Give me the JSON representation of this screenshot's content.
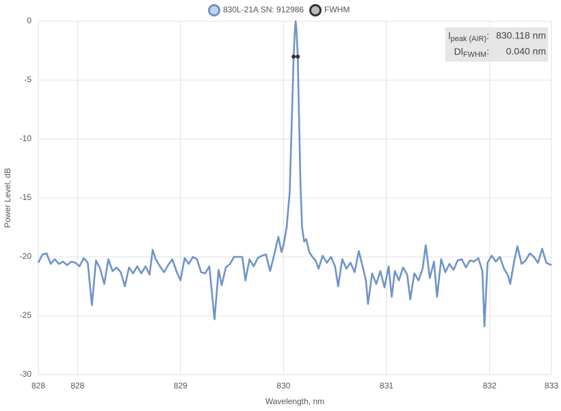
{
  "chart_data": {
    "type": "line",
    "x_label": "Wavelength, nm",
    "y_label": "Power Level, dB",
    "xlim": [
      827.62,
      832.6
    ],
    "xticks": [
      {
        "value": 827.62,
        "label": "828"
      },
      {
        "value": 828,
        "label": "828"
      },
      {
        "value": 829,
        "label": "829"
      },
      {
        "value": 830,
        "label": "830"
      },
      {
        "value": 831,
        "label": "831"
      },
      {
        "value": 832,
        "label": "832"
      },
      {
        "value": 832.6,
        "label": "833"
      }
    ],
    "ylim": [
      -30,
      0
    ],
    "yticks": [
      0,
      -5,
      -10,
      -15,
      -20,
      -25,
      -30
    ],
    "grid": true,
    "legend": "top",
    "x": [
      827.62,
      827.66,
      827.7,
      827.74,
      827.78,
      827.82,
      827.86,
      827.9,
      827.94,
      827.98,
      828.02,
      828.06,
      828.1,
      828.14,
      828.18,
      828.22,
      828.26,
      828.3,
      828.34,
      828.38,
      828.42,
      828.46,
      828.5,
      828.54,
      828.58,
      828.62,
      828.66,
      828.7,
      828.73,
      828.76,
      828.8,
      828.84,
      828.88,
      828.92,
      828.96,
      829.0,
      829.04,
      829.08,
      829.12,
      829.16,
      829.2,
      829.24,
      829.28,
      829.33,
      829.37,
      829.4,
      829.44,
      829.48,
      829.52,
      829.56,
      829.6,
      829.63,
      829.67,
      829.71,
      829.75,
      829.79,
      829.83,
      829.87,
      829.91,
      829.95,
      829.98,
      830.0,
      830.03,
      830.06,
      830.08,
      830.098,
      830.11,
      830.118,
      830.126,
      830.138,
      830.15,
      830.165,
      830.18,
      830.2,
      830.22,
      830.25,
      830.28,
      830.31,
      830.34,
      830.38,
      830.42,
      830.46,
      830.5,
      830.53,
      830.57,
      830.61,
      830.65,
      830.69,
      830.73,
      830.77,
      830.8,
      830.82,
      830.86,
      830.9,
      830.94,
      830.98,
      831.02,
      831.05,
      831.08,
      831.12,
      831.16,
      831.2,
      831.23,
      831.27,
      831.31,
      831.35,
      831.38,
      831.42,
      831.46,
      831.49,
      831.53,
      831.57,
      831.61,
      831.65,
      831.69,
      831.73,
      831.77,
      831.81,
      831.85,
      831.89,
      831.93,
      831.95,
      831.98,
      832.02,
      832.06,
      832.1,
      832.14,
      832.18,
      832.2,
      832.24,
      832.27,
      832.31,
      832.35,
      832.39,
      832.43,
      832.47,
      832.51,
      832.55,
      832.6
    ],
    "series": [
      {
        "name": "830L-21A SN: 912986",
        "color": "#6f93c9",
        "values": [
          -20.5,
          -19.8,
          -19.7,
          -20.6,
          -20.2,
          -20.6,
          -20.4,
          -20.7,
          -20.4,
          -20.5,
          -20.8,
          -20.1,
          -20.5,
          -24.1,
          -20.3,
          -21.0,
          -22.3,
          -20.2,
          -21.2,
          -20.9,
          -21.3,
          -22.5,
          -20.9,
          -21.4,
          -20.8,
          -21.4,
          -20.8,
          -21.5,
          -19.4,
          -20.2,
          -20.8,
          -21.3,
          -20.7,
          -20.2,
          -21.2,
          -22.0,
          -20.1,
          -20.6,
          -20.0,
          -20.2,
          -21.3,
          -21.4,
          -20.8,
          -25.3,
          -21.1,
          -22.4,
          -20.9,
          -20.6,
          -20.0,
          -20.0,
          -20.0,
          -22.0,
          -20.2,
          -20.8,
          -20.1,
          -19.9,
          -19.8,
          -21.2,
          -19.8,
          -18.3,
          -19.6,
          -19.0,
          -17.5,
          -14.5,
          -8.5,
          -3.0,
          -0.8,
          0,
          -0.8,
          -3.0,
          -8.0,
          -14.0,
          -17.5,
          -18.7,
          -18.5,
          -19.6,
          -20.0,
          -20.3,
          -21.0,
          -19.9,
          -20.5,
          -20.0,
          -20.8,
          -22.5,
          -20.2,
          -21.0,
          -20.5,
          -21.3,
          -19.5,
          -20.9,
          -22.0,
          -24.0,
          -21.4,
          -22.3,
          -21.2,
          -22.6,
          -20.8,
          -23.4,
          -21.2,
          -22.0,
          -20.9,
          -21.5,
          -23.6,
          -21.4,
          -22.0,
          -21.0,
          -19.0,
          -21.8,
          -20.4,
          -23.4,
          -20.2,
          -21.3,
          -20.6,
          -21.1,
          -20.3,
          -20.2,
          -20.9,
          -20.3,
          -20.4,
          -20.1,
          -21.2,
          -25.9,
          -20.5,
          -19.9,
          -20.4,
          -20.0,
          -21.0,
          -21.6,
          -22.3,
          -20.3,
          -19.1,
          -20.6,
          -20.3,
          -19.7,
          -20.0,
          -20.5,
          -19.3,
          -20.5,
          -20.7
        ]
      },
      {
        "name": "FWHM",
        "color": "#333333",
        "x": [
          830.098,
          830.138
        ],
        "values": [
          -3.0,
          -3.0
        ]
      }
    ],
    "annotations": [
      {
        "symbol": "l",
        "subscript": "peak (AIR)",
        "suffix": ":",
        "value": "830.118 nm"
      },
      {
        "symbol": "Dl",
        "subscript": "FWHM",
        "suffix": ":",
        "value": "0.040 nm"
      }
    ]
  }
}
